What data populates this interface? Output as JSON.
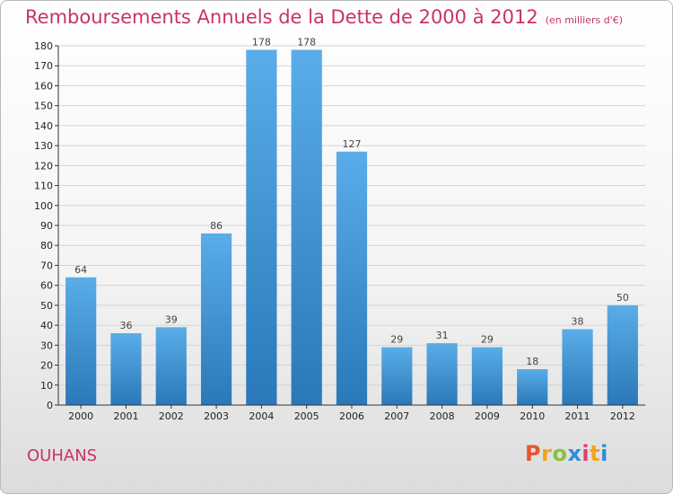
{
  "header": {
    "title": "Remboursements Annuels de la Dette de 2000 à 2012",
    "subtitle": "(en milliers d'€)"
  },
  "footer": {
    "commune": "OUHANS",
    "logo_letters": [
      "P",
      "r",
      "o",
      "x",
      "i",
      "t",
      "i"
    ],
    "logo_colors": [
      "#e8562a",
      "#f2a31b",
      "#8cbf3f",
      "#2a8fd6",
      "#e33b6f",
      "#f2a31b",
      "#2a8fd6"
    ]
  },
  "chart_data": {
    "type": "bar",
    "categories": [
      "2000",
      "2001",
      "2002",
      "2003",
      "2004",
      "2005",
      "2006",
      "2007",
      "2008",
      "2009",
      "2010",
      "2011",
      "2012"
    ],
    "values": [
      64,
      36,
      39,
      86,
      178,
      178,
      127,
      29,
      31,
      29,
      18,
      38,
      50
    ],
    "title": "Remboursements Annuels de la Dette de 2000 à 2012",
    "subtitle": "(en milliers d'€)",
    "ylim": [
      0,
      180
    ],
    "yticks": [
      0,
      10,
      20,
      30,
      40,
      50,
      60,
      70,
      80,
      90,
      100,
      110,
      120,
      130,
      140,
      150,
      160,
      170,
      180
    ],
    "grid": true,
    "bar_color_top": "#5aade8",
    "bar_color_bottom": "#2a78b8"
  }
}
